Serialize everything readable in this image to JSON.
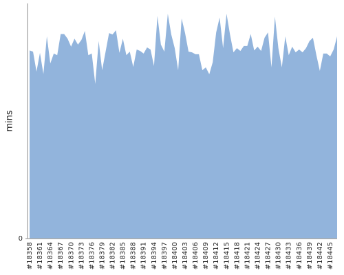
{
  "chart_data": {
    "type": "area",
    "y_label": "mins",
    "color": "#92b4dc",
    "ylim": [
      0,
      100
    ],
    "yticks": [
      0
    ],
    "categories": [
      "#18358",
      null,
      null,
      "#18361",
      null,
      null,
      "#18364",
      null,
      null,
      "#18367",
      null,
      null,
      "#18370",
      null,
      null,
      "#18373",
      null,
      null,
      "#18376",
      null,
      null,
      "#18379",
      null,
      null,
      "#18382",
      null,
      null,
      "#18385",
      null,
      null,
      "#18388",
      null,
      null,
      "#18391",
      null,
      null,
      "#18394",
      null,
      null,
      "#18397",
      null,
      null,
      "#18400",
      null,
      null,
      "#18403",
      null,
      null,
      "#18406",
      null,
      null,
      "#18409",
      null,
      null,
      "#18412",
      null,
      null,
      "#18415",
      null,
      null,
      "#18418",
      null,
      null,
      "#18421",
      null,
      null,
      "#18424",
      null,
      null,
      "#18427",
      null,
      null,
      "#18430",
      null,
      null,
      "#18433",
      null,
      null,
      "#18436",
      null,
      null,
      "#18439",
      null,
      null,
      "#18442",
      null,
      null,
      "#18445",
      null,
      null
    ],
    "values": [
      80,
      79.5,
      71,
      79,
      70,
      86,
      74.5,
      78.7,
      78,
      87,
      87,
      85,
      81.6,
      85,
      82.5,
      84.5,
      88.3,
      78,
      78.7,
      65.8,
      84,
      71.6,
      79.5,
      87.4,
      86.8,
      88.6,
      79,
      85,
      78,
      79.5,
      73,
      80.4,
      79.8,
      78.7,
      81.3,
      80.4,
      73.4,
      94.7,
      82.5,
      79.5,
      95.6,
      86.8,
      81,
      71.6,
      93.6,
      87.4,
      79.5,
      79.2,
      78.4,
      78.4,
      71.6,
      72.8,
      69.9,
      75,
      87.7,
      94,
      81,
      95.6,
      86.8,
      79.2,
      81,
      79.8,
      81.9,
      81.9,
      87,
      80,
      81.6,
      79.8,
      85.4,
      87.7,
      72.8,
      94.4,
      81,
      72.8,
      86,
      78,
      81.6,
      79.2,
      80.4,
      79.2,
      81,
      84,
      85.4,
      78,
      71.3,
      78.7,
      78.7,
      77.5,
      80.4,
      86
    ]
  }
}
